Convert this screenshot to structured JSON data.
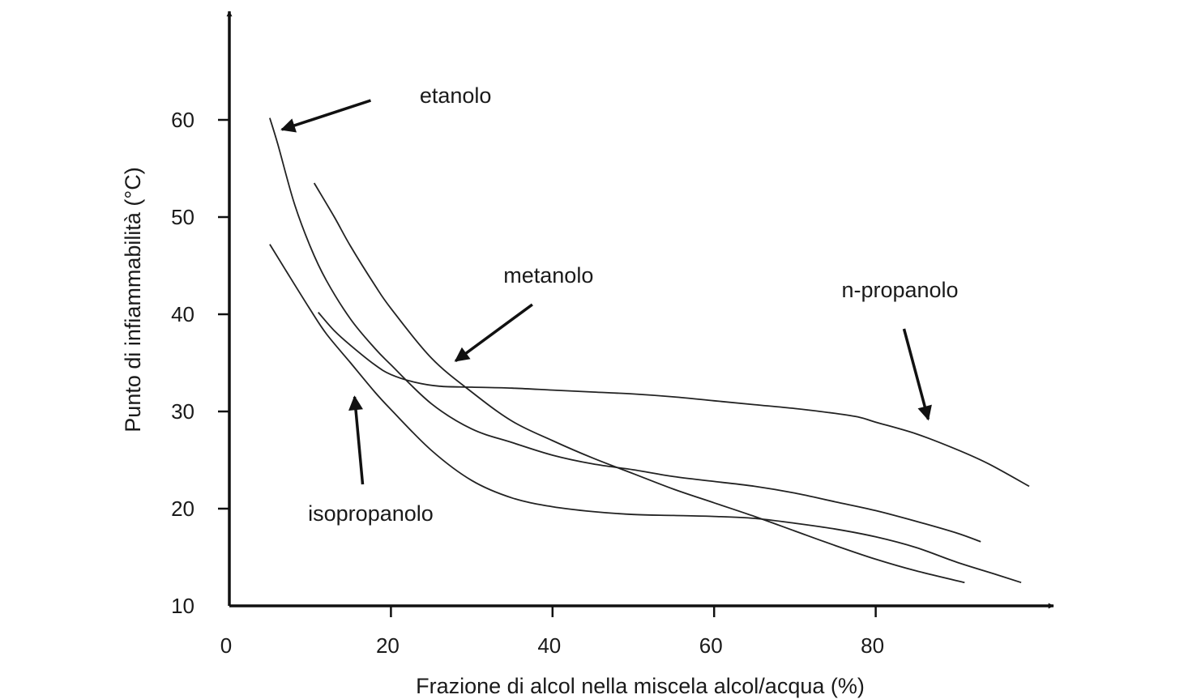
{
  "chart_data": {
    "type": "line",
    "title": "",
    "xlabel": "Frazione di alcol nella miscela alcol/acqua (%)",
    "ylabel": "Punto di infiammabilità (°C)",
    "xlim": [
      0,
      102
    ],
    "ylim": [
      10,
      70
    ],
    "x_ticks": [
      0,
      20,
      40,
      60,
      80
    ],
    "y_ticks": [
      10,
      20,
      30,
      40,
      50,
      60
    ],
    "grid": false,
    "legend": "none",
    "series": [
      {
        "name": "etanolo",
        "points": [
          [
            5,
            60.2
          ],
          [
            6,
            57.5
          ],
          [
            8,
            51.5
          ],
          [
            10,
            47
          ],
          [
            12,
            43.5
          ],
          [
            15,
            39.5
          ],
          [
            18,
            36.5
          ],
          [
            20,
            34.8
          ],
          [
            25,
            30.8
          ],
          [
            30,
            28.2
          ],
          [
            35,
            26.8
          ],
          [
            40,
            25.5
          ],
          [
            45,
            24.6
          ],
          [
            50,
            24
          ],
          [
            55,
            23.3
          ],
          [
            60,
            22.8
          ],
          [
            65,
            22.3
          ],
          [
            70,
            21.6
          ],
          [
            75,
            20.7
          ],
          [
            80,
            19.8
          ],
          [
            85,
            18.7
          ],
          [
            90,
            17.5
          ],
          [
            93,
            16.6
          ]
        ],
        "label_anchor": [
          28,
          62.5
        ],
        "pointer": {
          "from": [
            17.5,
            62
          ],
          "to": [
            6.5,
            59
          ]
        }
      },
      {
        "name": "metanolo",
        "points": [
          [
            10.5,
            53.5
          ],
          [
            13,
            50
          ],
          [
            15,
            47
          ],
          [
            18,
            43
          ],
          [
            20,
            40.6
          ],
          [
            25,
            35.5
          ],
          [
            30,
            32
          ],
          [
            35,
            29
          ],
          [
            40,
            27
          ],
          [
            45,
            25.2
          ],
          [
            50,
            23.6
          ],
          [
            55,
            22
          ],
          [
            60,
            20.6
          ],
          [
            65,
            19.2
          ],
          [
            70,
            17.7
          ],
          [
            75,
            16.2
          ],
          [
            80,
            14.8
          ],
          [
            85,
            13.6
          ],
          [
            91,
            12.4
          ]
        ],
        "label_anchor": [
          39.5,
          44
        ],
        "pointer": {
          "from": [
            37.5,
            41
          ],
          "to": [
            28,
            35.2
          ]
        }
      },
      {
        "name": "isopropanolo",
        "points": [
          [
            5,
            47.2
          ],
          [
            7,
            44.5
          ],
          [
            10,
            40.5
          ],
          [
            12,
            38
          ],
          [
            15,
            35
          ],
          [
            18,
            32
          ],
          [
            20,
            30.2
          ],
          [
            25,
            26
          ],
          [
            30,
            22.9
          ],
          [
            35,
            21.1
          ],
          [
            40,
            20.2
          ],
          [
            45,
            19.7
          ],
          [
            50,
            19.4
          ],
          [
            55,
            19.3
          ],
          [
            60,
            19.2
          ],
          [
            65,
            19
          ],
          [
            70,
            18.5
          ],
          [
            75,
            17.9
          ],
          [
            80,
            17.1
          ],
          [
            85,
            16
          ],
          [
            90,
            14.5
          ],
          [
            95,
            13.2
          ],
          [
            98,
            12.4
          ]
        ],
        "label_anchor": [
          17.5,
          19.5
        ],
        "pointer": {
          "from": [
            16.5,
            22.5
          ],
          "to": [
            15.5,
            31.5
          ]
        }
      },
      {
        "name": "n-propanolo",
        "points": [
          [
            11,
            40.2
          ],
          [
            13,
            38.3
          ],
          [
            15,
            36.8
          ],
          [
            18,
            34.8
          ],
          [
            20,
            33.8
          ],
          [
            23,
            33
          ],
          [
            26,
            32.6
          ],
          [
            30,
            32.5
          ],
          [
            35,
            32.4
          ],
          [
            40,
            32.2
          ],
          [
            45,
            32
          ],
          [
            50,
            31.8
          ],
          [
            55,
            31.5
          ],
          [
            60,
            31.1
          ],
          [
            65,
            30.7
          ],
          [
            70,
            30.3
          ],
          [
            75,
            29.8
          ],
          [
            78,
            29.4
          ],
          [
            80,
            28.9
          ],
          [
            85,
            27.7
          ],
          [
            90,
            26.1
          ],
          [
            94,
            24.6
          ],
          [
            99,
            22.3
          ]
        ],
        "label_anchor": [
          83,
          42.5
        ],
        "pointer": {
          "from": [
            83.5,
            38.5
          ],
          "to": [
            86.5,
            29.2
          ]
        }
      }
    ]
  }
}
